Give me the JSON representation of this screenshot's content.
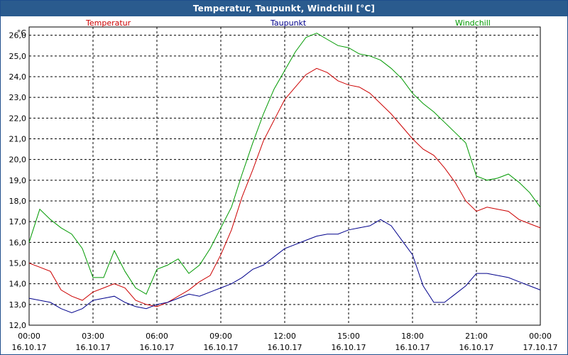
{
  "window": {
    "title": "Temperatur, Taupunkt, Windchill [°C]"
  },
  "chart_data": {
    "type": "line",
    "ylabel": "°C",
    "ylim": [
      12.0,
      26.4
    ],
    "yticks": [
      "12,0",
      "13,0",
      "14,0",
      "15,0",
      "16,0",
      "17,0",
      "18,0",
      "19,0",
      "20,0",
      "21,0",
      "22,0",
      "23,0",
      "24,0",
      "25,0",
      "26,0"
    ],
    "xlim": [
      0,
      24
    ],
    "xticks": [
      {
        "time": "00:00",
        "date": "16.10.17"
      },
      {
        "time": "03:00",
        "date": "16.10.17"
      },
      {
        "time": "06:00",
        "date": "16.10.17"
      },
      {
        "time": "09:00",
        "date": "16.10.17"
      },
      {
        "time": "12:00",
        "date": "16.10.17"
      },
      {
        "time": "15:00",
        "date": "16.10.17"
      },
      {
        "time": "18:00",
        "date": "16.10.17"
      },
      {
        "time": "21:00",
        "date": "16.10.17"
      },
      {
        "time": "00:00",
        "date": "17.10.17"
      }
    ],
    "grid": true,
    "legend_position": "top",
    "x": [
      0,
      0.5,
      1,
      1.5,
      2,
      2.5,
      3,
      3.5,
      4,
      4.5,
      5,
      5.5,
      6,
      6.5,
      7,
      7.5,
      8,
      8.5,
      9,
      9.5,
      10,
      10.5,
      11,
      11.5,
      12,
      12.5,
      13,
      13.5,
      14,
      14.5,
      15,
      15.5,
      16,
      16.5,
      17,
      17.5,
      18,
      18.5,
      19,
      19.5,
      20,
      20.5,
      21,
      21.5,
      22,
      22.5,
      23,
      23.5,
      24
    ],
    "series": [
      {
        "name": "Temperatur",
        "color": "#cc0000",
        "values": [
          15.0,
          14.8,
          14.6,
          13.7,
          13.4,
          13.2,
          13.6,
          13.8,
          14.0,
          13.8,
          13.2,
          13.0,
          12.9,
          13.1,
          13.4,
          13.7,
          14.1,
          14.4,
          15.4,
          16.6,
          18.2,
          19.5,
          20.9,
          21.9,
          22.9,
          23.5,
          24.1,
          24.4,
          24.2,
          23.8,
          23.6,
          23.5,
          23.2,
          22.7,
          22.2,
          21.6,
          21.0,
          20.5,
          20.2,
          19.6,
          18.9,
          18.0,
          17.5,
          17.7,
          17.6,
          17.5,
          17.1,
          16.9,
          16.7
        ]
      },
      {
        "name": "Taupunkt",
        "color": "#00008b",
        "values": [
          13.3,
          13.2,
          13.1,
          12.8,
          12.6,
          12.8,
          13.2,
          13.3,
          13.4,
          13.1,
          12.9,
          12.8,
          13.0,
          13.1,
          13.3,
          13.5,
          13.4,
          13.6,
          13.8,
          14.0,
          14.3,
          14.7,
          14.9,
          15.3,
          15.7,
          15.9,
          16.1,
          16.3,
          16.4,
          16.4,
          16.6,
          16.7,
          16.8,
          17.1,
          16.8,
          16.1,
          15.4,
          13.9,
          13.1,
          13.1,
          13.5,
          13.9,
          14.5,
          14.5,
          14.4,
          14.3,
          14.1,
          13.9,
          13.7
        ]
      },
      {
        "name": "Windchill",
        "color": "#009900",
        "values": [
          16.0,
          17.6,
          17.1,
          16.7,
          16.4,
          15.7,
          14.3,
          14.3,
          15.6,
          14.6,
          13.8,
          13.5,
          14.7,
          14.9,
          15.2,
          14.5,
          14.9,
          15.7,
          16.7,
          17.7,
          19.3,
          20.8,
          22.2,
          23.4,
          24.3,
          25.2,
          25.9,
          26.1,
          25.8,
          25.5,
          25.4,
          25.1,
          25.0,
          24.8,
          24.4,
          23.9,
          23.2,
          22.7,
          22.3,
          21.8,
          21.3,
          20.8,
          19.2,
          19.0,
          19.1,
          19.3,
          18.9,
          18.4,
          17.7
        ]
      }
    ]
  }
}
